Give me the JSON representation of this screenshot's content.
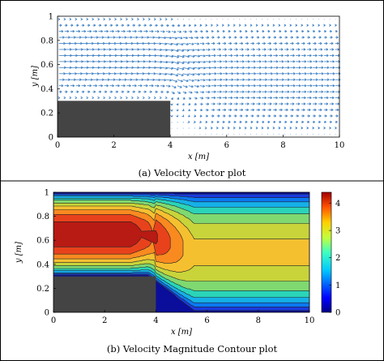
{
  "chart_data": [
    {
      "type": "vector",
      "caption": "(a) Velocity Vector plot",
      "xlabel": "x [m]",
      "ylabel": "y [m]",
      "xlim": [
        0,
        10
      ],
      "ylim": [
        0,
        1
      ],
      "xticks": [
        "0",
        "2",
        "4",
        "6",
        "8",
        "10"
      ],
      "yticks": [
        "0",
        "0.2",
        "0.4",
        "0.6",
        "0.8",
        "1"
      ],
      "arrow_color": "#3b7fc4",
      "obstacle": {
        "x": [
          0,
          4
        ],
        "y": [
          0,
          0.3
        ],
        "color": "#444444"
      },
      "grid_spacing": {
        "dx": 0.2,
        "dy": 0.05
      }
    },
    {
      "type": "contour",
      "caption": "(b) Velocity Magnitude Contour plot",
      "xlabel": "x [m]",
      "ylabel": "y [m]",
      "xlim": [
        0,
        10
      ],
      "ylim": [
        0,
        1
      ],
      "xticks": [
        "0",
        "2",
        "4",
        "6",
        "8",
        "10"
      ],
      "yticks": [
        "0",
        "0.2",
        "0.4",
        "0.6",
        "0.8",
        "1"
      ],
      "obstacle": {
        "x": [
          0,
          4
        ],
        "y": [
          0,
          0.3
        ],
        "color": "#444444"
      },
      "colorbar": {
        "min": 0,
        "max": 4.4,
        "ticks": [
          "0",
          "1",
          "2",
          "3",
          "4"
        ]
      },
      "levels": [
        0,
        0.4,
        0.8,
        1.2,
        1.6,
        2.0,
        2.4,
        2.8,
        3.2,
        3.6,
        4.0
      ],
      "level_colors": [
        "#0a0e9a",
        "#1a3be0",
        "#0b79f0",
        "#15b0e8",
        "#2ad4b8",
        "#7fd870",
        "#c8d43a",
        "#f5c030",
        "#f98a20",
        "#e8421c",
        "#b81a14"
      ]
    }
  ]
}
